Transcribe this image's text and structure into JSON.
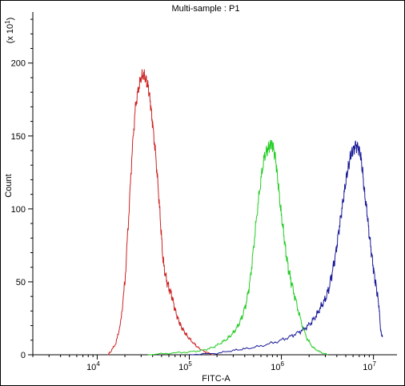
{
  "chart_data": {
    "type": "line",
    "title": "Multi-sample : P1",
    "xlabel": "FITC-A",
    "ylabel": "Count",
    "y_multiplier_label": "(x 10^1)",
    "x_scale": "log",
    "xlim": [
      2000,
      18000000
    ],
    "ylim": [
      0,
      235
    ],
    "x_tick_labels": [
      {
        "value": 10000,
        "base": "10",
        "exp": "4"
      },
      {
        "value": 100000,
        "base": "10",
        "exp": "5"
      },
      {
        "value": 1000000,
        "base": "10",
        "exp": "6"
      },
      {
        "value": 10000000,
        "base": "10",
        "exp": "7"
      }
    ],
    "y_ticks": [
      0,
      50,
      100,
      150,
      200
    ],
    "grid": false,
    "series": [
      {
        "color": "#cc2222",
        "x": [
          13000,
          14000,
          16000,
          18000,
          20000,
          22000,
          24000,
          26000,
          28000,
          30000,
          32000,
          34000,
          36000,
          38000,
          40000,
          43000,
          46000,
          49000,
          52000,
          56000,
          60000,
          65000,
          70000,
          76000,
          82000,
          90000,
          100000,
          115000,
          130000,
          150000,
          180000
        ],
        "y": [
          0,
          2,
          8,
          22,
          50,
          95,
          140,
          170,
          182,
          190,
          192,
          188,
          183,
          172,
          158,
          138,
          114,
          88,
          64,
          52,
          46,
          40,
          31,
          24,
          19,
          15,
          11,
          7,
          4,
          2,
          0
        ]
      },
      {
        "color": "#22cc22",
        "x": [
          35000,
          60000,
          100000,
          140000,
          180000,
          220000,
          260000,
          300000,
          340000,
          380000,
          420000,
          460000,
          500000,
          550000,
          600000,
          650000,
          700000,
          740000,
          780000,
          820000,
          870000,
          920000,
          980000,
          1050000,
          1120000,
          1200000,
          1300000,
          1450000,
          1650000,
          1900000,
          2200000,
          2600000,
          3200000
        ],
        "y": [
          0,
          1,
          2,
          3,
          5,
          8,
          11,
          15,
          20,
          27,
          37,
          52,
          74,
          100,
          120,
          135,
          140,
          143,
          145,
          142,
          133,
          118,
          100,
          85,
          70,
          58,
          48,
          36,
          22,
          11,
          5,
          2,
          0
        ]
      },
      {
        "color": "#1a1a99",
        "x": [
          100000,
          200000,
          300000,
          400000,
          600000,
          900000,
          1200000,
          1500000,
          1800000,
          2100000,
          2400000,
          2700000,
          3000000,
          3300000,
          3600000,
          3900000,
          4200000,
          4500000,
          4800000,
          5100000,
          5400000,
          5700000,
          6000000,
          6400000,
          6800000,
          7200000,
          7600000,
          8000000,
          8500000,
          9000000,
          9600000,
          10200000,
          10800000,
          11400000,
          12000000,
          12500000
        ],
        "y": [
          0,
          1,
          3,
          4,
          6,
          9,
          12,
          15,
          18,
          22,
          27,
          33,
          38,
          46,
          58,
          70,
          85,
          98,
          110,
          122,
          130,
          138,
          140,
          144,
          142,
          138,
          126,
          110,
          98,
          82,
          68,
          55,
          45,
          35,
          16,
          12
        ]
      }
    ]
  }
}
